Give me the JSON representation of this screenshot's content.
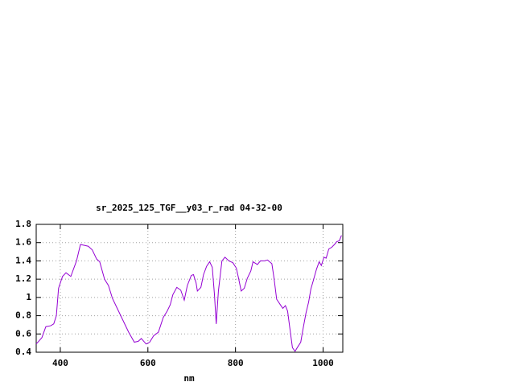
{
  "chart_data": {
    "type": "line",
    "title": "sr_2025_125_TGF__y03_r_rad 04-32-00",
    "x_label": "nm",
    "x": [
      345,
      358,
      367,
      378,
      385,
      391,
      396,
      405,
      413,
      424,
      437,
      446,
      464,
      473,
      483,
      490,
      501,
      510,
      519,
      530,
      543,
      556,
      569,
      578,
      585,
      596,
      604,
      613,
      624,
      635,
      644,
      651,
      657,
      666,
      675,
      683,
      690,
      699,
      704,
      710,
      713,
      721,
      727,
      734,
      741,
      747,
      752,
      756,
      761,
      769,
      776,
      785,
      794,
      802,
      807,
      813,
      820,
      827,
      835,
      840,
      850,
      857,
      866,
      873,
      883,
      888,
      894,
      901,
      908,
      914,
      919,
      925,
      930,
      936,
      941,
      949,
      954,
      961,
      967,
      972,
      978,
      985,
      991,
      996,
      1002,
      1007,
      1013,
      1020,
      1026,
      1031,
      1037,
      1042
    ],
    "series": [
      {
        "color": "#9400d3",
        "values": [
          0.49,
          0.56,
          0.68,
          0.69,
          0.71,
          0.8,
          1.1,
          1.23,
          1.27,
          1.23,
          1.4,
          1.58,
          1.56,
          1.52,
          1.42,
          1.39,
          1.2,
          1.13,
          0.99,
          0.88,
          0.75,
          0.62,
          0.51,
          0.52,
          0.55,
          0.49,
          0.51,
          0.58,
          0.62,
          0.78,
          0.85,
          0.92,
          1.03,
          1.11,
          1.08,
          0.97,
          1.13,
          1.24,
          1.25,
          1.16,
          1.07,
          1.11,
          1.25,
          1.34,
          1.39,
          1.33,
          1.03,
          0.71,
          1.07,
          1.4,
          1.44,
          1.4,
          1.38,
          1.32,
          1.21,
          1.07,
          1.1,
          1.21,
          1.29,
          1.39,
          1.36,
          1.4,
          1.4,
          1.41,
          1.37,
          1.21,
          0.98,
          0.93,
          0.88,
          0.91,
          0.85,
          0.63,
          0.45,
          0.41,
          0.45,
          0.51,
          0.65,
          0.83,
          0.95,
          1.09,
          1.19,
          1.31,
          1.39,
          1.35,
          1.44,
          1.43,
          1.53,
          1.55,
          1.58,
          1.61,
          1.62,
          1.68
        ]
      }
    ],
    "xlim": [
      345,
      1045
    ],
    "ylim": [
      0.4,
      1.8
    ],
    "xticks": [
      400,
      600,
      800,
      1000
    ],
    "yticks": [
      0.4,
      0.6,
      0.8,
      1,
      1.2,
      1.4,
      1.6,
      1.8
    ],
    "grid": true
  }
}
